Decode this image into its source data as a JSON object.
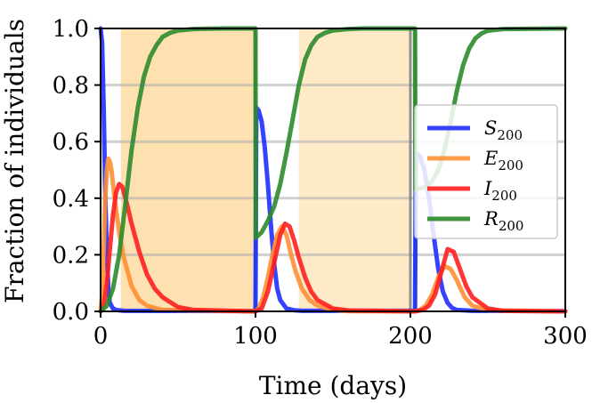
{
  "chart_data": {
    "type": "line",
    "title": "",
    "xlabel": "Time (days)",
    "ylabel": "Fraction of individuals",
    "xlim": [
      0,
      300
    ],
    "ylim": [
      0,
      1.0
    ],
    "xticks": [
      "0",
      "100",
      "200",
      "300"
    ],
    "xtick_values": [
      0,
      100,
      200,
      300
    ],
    "yticks": [
      "0.0",
      "0.2",
      "0.4",
      "0.6",
      "0.8",
      "1.0"
    ],
    "ytick_values": [
      0,
      0.2,
      0.4,
      0.6,
      0.8,
      1.0
    ],
    "grid": "horizontal",
    "legend_position": "right",
    "shaded_regions": [
      {
        "x0": 13,
        "x1": 100,
        "color": "#fcd48f",
        "opacity": 0.7
      },
      {
        "x0": 128,
        "x1": 200,
        "color": "#fde3b3",
        "opacity": 0.75
      }
    ],
    "vertical_markers": [
      {
        "x": 100,
        "color": "#2e8b2e"
      },
      {
        "x": 200,
        "color": "#777777"
      },
      {
        "x": 203,
        "color": "#2e8b2e"
      }
    ],
    "series": [
      {
        "name": "S",
        "subscript": "200",
        "color": "#1f2fff",
        "x": [
          0,
          1,
          2,
          3,
          4,
          5,
          6,
          8,
          10,
          15,
          100,
          100.5,
          102,
          104,
          106,
          108,
          110,
          112,
          114,
          116,
          120,
          125,
          130,
          203,
          203.5,
          206,
          209,
          212,
          215,
          218,
          221,
          224,
          227,
          230,
          240,
          300
        ],
        "values": [
          1.0,
          0.95,
          0.72,
          0.42,
          0.2,
          0.08,
          0.03,
          0.01,
          0.005,
          0.002,
          0.001,
          0.72,
          0.71,
          0.67,
          0.58,
          0.45,
          0.3,
          0.17,
          0.08,
          0.04,
          0.01,
          0.004,
          0.002,
          0.002,
          0.56,
          0.55,
          0.5,
          0.4,
          0.27,
          0.15,
          0.07,
          0.03,
          0.012,
          0.005,
          0.002,
          0.001
        ]
      },
      {
        "name": "E",
        "subscript": "200",
        "color": "#ff8f35",
        "x": [
          0,
          1,
          2,
          3,
          4,
          5,
          6,
          7,
          8,
          10,
          12,
          15,
          20,
          25,
          30,
          40,
          100,
          102,
          105,
          108,
          111,
          114,
          117,
          120,
          123,
          126,
          130,
          135,
          140,
          150,
          160,
          203,
          206,
          210,
          214,
          218,
          222,
          226,
          230,
          235,
          240,
          250,
          300
        ],
        "values": [
          0.0,
          0.06,
          0.22,
          0.4,
          0.5,
          0.54,
          0.53,
          0.5,
          0.45,
          0.36,
          0.28,
          0.19,
          0.09,
          0.04,
          0.02,
          0.005,
          0.0,
          0.01,
          0.05,
          0.12,
          0.2,
          0.27,
          0.3,
          0.27,
          0.2,
          0.14,
          0.08,
          0.04,
          0.02,
          0.005,
          0.001,
          0.0,
          0.005,
          0.02,
          0.06,
          0.12,
          0.16,
          0.15,
          0.11,
          0.05,
          0.02,
          0.004,
          0.0
        ]
      },
      {
        "name": "I",
        "subscript": "200",
        "color": "#ff1f1f",
        "x": [
          0,
          2,
          4,
          6,
          8,
          10,
          12,
          14,
          17,
          20,
          25,
          30,
          35,
          40,
          50,
          60,
          100,
          104,
          108,
          112,
          116,
          119,
          122,
          125,
          128,
          132,
          136,
          140,
          150,
          160,
          203,
          208,
          212,
          216,
          220,
          224,
          228,
          232,
          236,
          240,
          250,
          260,
          300
        ],
        "values": [
          0.0,
          0.02,
          0.1,
          0.22,
          0.34,
          0.42,
          0.45,
          0.44,
          0.38,
          0.31,
          0.21,
          0.13,
          0.08,
          0.05,
          0.015,
          0.005,
          0.0,
          0.01,
          0.07,
          0.17,
          0.27,
          0.31,
          0.3,
          0.25,
          0.19,
          0.12,
          0.07,
          0.04,
          0.01,
          0.003,
          0.0,
          0.005,
          0.02,
          0.06,
          0.14,
          0.22,
          0.21,
          0.15,
          0.09,
          0.05,
          0.01,
          0.002,
          0.0
        ]
      },
      {
        "name": "R",
        "subscript": "200",
        "color": "#2e8b2e",
        "x": [
          0,
          4,
          8,
          12,
          16,
          20,
          24,
          28,
          32,
          36,
          40,
          45,
          50,
          60,
          70,
          80,
          100,
          100.2,
          104,
          108,
          112,
          116,
          120,
          124,
          128,
          132,
          136,
          140,
          145,
          150,
          160,
          170,
          203,
          203.2,
          210,
          214,
          218,
          222,
          226,
          230,
          234,
          238,
          242,
          246,
          250,
          260,
          300
        ],
        "values": [
          0.0,
          0.02,
          0.08,
          0.2,
          0.38,
          0.57,
          0.72,
          0.83,
          0.9,
          0.94,
          0.97,
          0.985,
          0.993,
          0.998,
          0.999,
          1.0,
          1.0,
          0.26,
          0.28,
          0.32,
          0.37,
          0.45,
          0.56,
          0.68,
          0.8,
          0.89,
          0.94,
          0.97,
          0.985,
          0.993,
          0.998,
          1.0,
          1.0,
          0.43,
          0.44,
          0.46,
          0.5,
          0.57,
          0.67,
          0.78,
          0.87,
          0.93,
          0.965,
          0.983,
          0.992,
          0.998,
          1.0
        ]
      }
    ]
  }
}
